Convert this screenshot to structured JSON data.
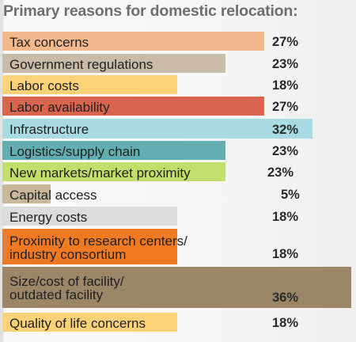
{
  "chart_data": {
    "type": "bar",
    "orientation": "horizontal",
    "title": "Primary reasons for domestic relocation:",
    "categories": [
      "Tax concerns",
      "Government regulations",
      "Labor costs",
      "Labor availability",
      "Infrastructure",
      "Logistics/supply chain",
      "New markets/market proximity",
      "Capital access",
      "Energy costs",
      "Proximity to research centers/\nindustry consortium",
      "Size/cost of facility/\noutdated facility",
      "Quality of life concerns"
    ],
    "values": [
      27,
      23,
      18,
      27,
      32,
      23,
      23,
      5,
      18,
      18,
      36,
      18
    ],
    "value_labels": [
      "27%",
      "23%",
      "18%",
      "27%",
      "32%",
      "23%",
      "23%",
      "5%",
      "18%",
      "18%",
      "36%",
      "18%"
    ],
    "colors": [
      "#f3b88c",
      "#c8bca8",
      "#fbd277",
      "#d9654f",
      "#a8dce2",
      "#62aeb0",
      "#c2df6c",
      "#c9b79b",
      "#dcdcdc",
      "#f07a22",
      "#9b8768",
      "#fbd277"
    ],
    "xlim": [
      0,
      36
    ],
    "grid": false,
    "legend": "none"
  }
}
